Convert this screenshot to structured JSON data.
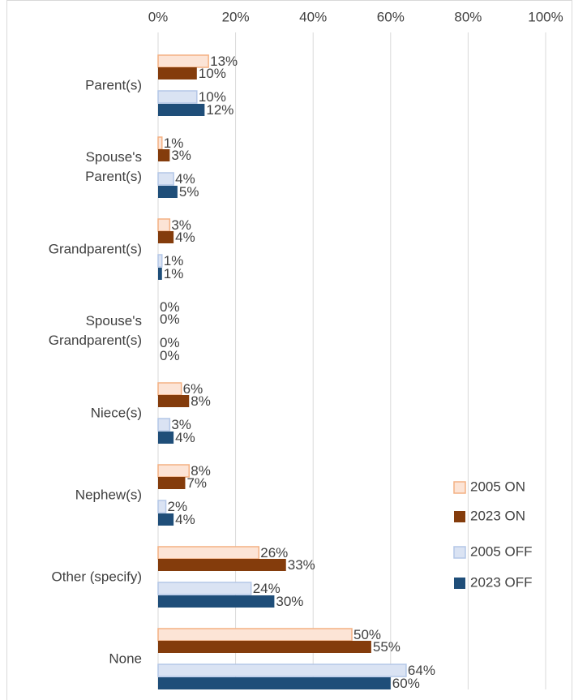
{
  "chart_data": {
    "type": "bar",
    "orientation": "horizontal",
    "categories": [
      "Parent(s)",
      "Spouse's\nParent(s)",
      "Grandparent(s)",
      "Spouse's\nGrandparent(s)",
      "Niece(s)",
      "Nephew(s)",
      "Other (specify)",
      "None"
    ],
    "series": [
      {
        "name": "2005 ON",
        "color": "#fce4d6",
        "values": [
          13,
          1,
          3,
          0,
          6,
          8,
          26,
          50
        ],
        "value_labels": [
          "13%",
          "1%",
          "3%",
          "0%",
          "6%",
          "8%",
          "26%",
          "50%"
        ]
      },
      {
        "name": "2023 ON",
        "color": "#843c0c",
        "values": [
          10,
          3,
          4,
          0,
          8,
          7,
          33,
          55
        ],
        "value_labels": [
          "10%",
          "3%",
          "4%",
          "0%",
          "8%",
          "7%",
          "33%",
          "55%"
        ]
      },
      {
        "name": "2005 OFF",
        "color": "#dae3f3",
        "values": [
          10,
          4,
          1,
          0,
          3,
          2,
          24,
          64
        ],
        "value_labels": [
          "10%",
          "4%",
          "1%",
          "0%",
          "3%",
          "2%",
          "24%",
          "64%"
        ]
      },
      {
        "name": "2023 OFF",
        "color": "#1f4e79",
        "values": [
          12,
          5,
          1,
          0,
          4,
          4,
          30,
          60
        ],
        "value_labels": [
          "12%",
          "5%",
          "1%",
          "0%",
          "4%",
          "4%",
          "30%",
          "60%"
        ]
      }
    ],
    "xlim": [
      0,
      100
    ],
    "xticks": [
      {
        "value": 0,
        "label": "0%"
      },
      {
        "value": 20,
        "label": "20%"
      },
      {
        "value": 40,
        "label": "40%"
      },
      {
        "value": 60,
        "label": "60%"
      },
      {
        "value": 80,
        "label": "80%"
      },
      {
        "value": 100,
        "label": "100%"
      }
    ],
    "grid": true,
    "legend": "right"
  }
}
